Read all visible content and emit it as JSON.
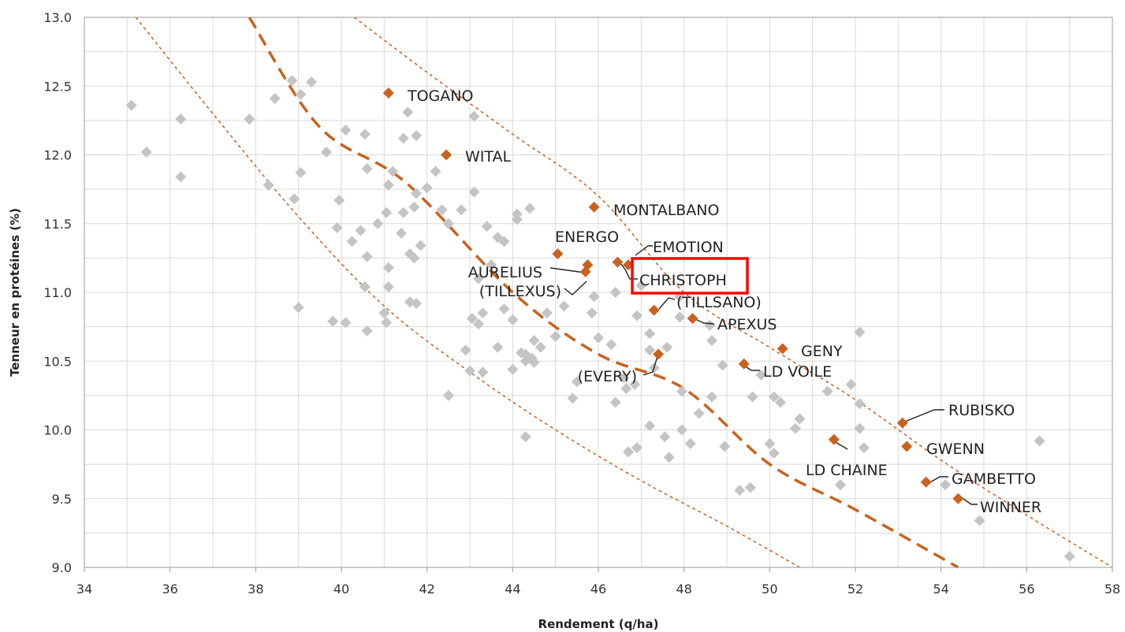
{
  "chart_data": {
    "type": "scatter",
    "xlabel": "Rendement (q/ha)",
    "ylabel": "Tenneur en protéines (%)",
    "xlim": [
      34,
      58
    ],
    "ylim": [
      9.0,
      13.0
    ],
    "x_ticks": [
      "34",
      "36",
      "38",
      "40",
      "42",
      "44",
      "46",
      "48",
      "50",
      "52",
      "54",
      "56",
      "58"
    ],
    "y_ticks": [
      "9.0",
      "9.5",
      "10.0",
      "10.5",
      "11.0",
      "11.5",
      "12.0",
      "12.5",
      "13.0"
    ],
    "grid": true,
    "colors": {
      "highlight": "#c8621e",
      "other": "#c4c4c4",
      "trend": "#c8621e",
      "box": "#ff0000"
    },
    "highlighted_varieties": [
      {
        "name": "TOGANO",
        "x": 41.1,
        "y": 12.45
      },
      {
        "name": "WITAL",
        "x": 42.45,
        "y": 12.0
      },
      {
        "name": "MONTALBANO",
        "x": 45.9,
        "y": 11.62
      },
      {
        "name": "ENERGO",
        "x": 45.05,
        "y": 11.28
      },
      {
        "name": "EMOTION",
        "x": 46.45,
        "y": 11.22
      },
      {
        "name": "AURELIUS",
        "x": 45.75,
        "y": 11.2
      },
      {
        "name": "(TILLEXUS)",
        "x": 45.7,
        "y": 11.15
      },
      {
        "name": "CHRISTOPH",
        "x": 46.7,
        "y": 11.2
      },
      {
        "name": "(TILLSANO)",
        "x": 47.3,
        "y": 10.87
      },
      {
        "name": "APEXUS",
        "x": 48.2,
        "y": 10.81
      },
      {
        "name": "GENY",
        "x": 50.3,
        "y": 10.59
      },
      {
        "name": "LD VOILE",
        "x": 49.4,
        "y": 10.48
      },
      {
        "name": "(EVERY)",
        "x": 47.4,
        "y": 10.55
      },
      {
        "name": "RUBISKO",
        "x": 53.1,
        "y": 10.05
      },
      {
        "name": "GWENN",
        "x": 53.2,
        "y": 9.88
      },
      {
        "name": "LD CHAINE",
        "x": 51.5,
        "y": 9.93
      },
      {
        "name": "GAMBETTO",
        "x": 53.65,
        "y": 9.62
      },
      {
        "name": "WINNER",
        "x": 54.4,
        "y": 9.5
      }
    ],
    "other_varieties": [
      [
        35.1,
        12.36
      ],
      [
        35.45,
        12.02
      ],
      [
        36.25,
        12.26
      ],
      [
        36.25,
        11.84
      ],
      [
        37.85,
        12.26
      ],
      [
        38.85,
        12.54
      ],
      [
        39.3,
        12.53
      ],
      [
        38.45,
        12.41
      ],
      [
        39.05,
        12.44
      ],
      [
        38.3,
        11.78
      ],
      [
        38.9,
        11.68
      ],
      [
        39.05,
        11.87
      ],
      [
        39.65,
        12.02
      ],
      [
        40.1,
        12.18
      ],
      [
        40.55,
        12.15
      ],
      [
        40.6,
        11.9
      ],
      [
        41.45,
        12.12
      ],
      [
        41.55,
        12.31
      ],
      [
        41.75,
        12.14
      ],
      [
        43.1,
        12.28
      ],
      [
        41.2,
        11.88
      ],
      [
        41.1,
        11.78
      ],
      [
        41.05,
        11.58
      ],
      [
        40.85,
        11.5
      ],
      [
        40.45,
        11.45
      ],
      [
        40.25,
        11.37
      ],
      [
        39.9,
        11.47
      ],
      [
        39.95,
        11.67
      ],
      [
        40.6,
        11.26
      ],
      [
        41.1,
        11.18
      ],
      [
        41.4,
        11.43
      ],
      [
        41.45,
        11.58
      ],
      [
        41.7,
        11.62
      ],
      [
        41.75,
        11.72
      ],
      [
        42.0,
        11.76
      ],
      [
        42.2,
        11.88
      ],
      [
        42.35,
        11.6
      ],
      [
        42.5,
        11.5
      ],
      [
        42.8,
        11.6
      ],
      [
        43.1,
        11.73
      ],
      [
        43.4,
        11.48
      ],
      [
        43.65,
        11.4
      ],
      [
        43.8,
        11.37
      ],
      [
        44.1,
        11.57
      ],
      [
        44.1,
        11.53
      ],
      [
        44.4,
        11.61
      ],
      [
        41.6,
        11.28
      ],
      [
        41.7,
        11.25
      ],
      [
        41.85,
        11.34
      ],
      [
        43.2,
        11.1
      ],
      [
        43.5,
        11.2
      ],
      [
        40.55,
        11.04
      ],
      [
        41.1,
        11.04
      ],
      [
        41.6,
        10.93
      ],
      [
        41.75,
        10.92
      ],
      [
        41.0,
        10.85
      ],
      [
        41.05,
        10.78
      ],
      [
        40.6,
        10.72
      ],
      [
        40.1,
        10.78
      ],
      [
        39.8,
        10.79
      ],
      [
        39.0,
        10.89
      ],
      [
        43.05,
        10.81
      ],
      [
        43.3,
        10.85
      ],
      [
        43.2,
        10.77
      ],
      [
        43.8,
        10.88
      ],
      [
        44.0,
        10.8
      ],
      [
        44.5,
        10.65
      ],
      [
        44.8,
        10.85
      ],
      [
        45.2,
        10.9
      ],
      [
        45.9,
        10.97
      ],
      [
        45.85,
        10.85
      ],
      [
        46.0,
        10.67
      ],
      [
        46.3,
        10.62
      ],
      [
        43.65,
        10.6
      ],
      [
        44.2,
        10.56
      ],
      [
        44.3,
        10.55
      ],
      [
        44.3,
        10.5
      ],
      [
        44.45,
        10.52
      ],
      [
        44.5,
        10.49
      ],
      [
        44.65,
        10.6
      ],
      [
        45.0,
        10.68
      ],
      [
        42.9,
        10.58
      ],
      [
        43.0,
        10.43
      ],
      [
        43.3,
        10.42
      ],
      [
        44.0,
        10.44
      ],
      [
        42.5,
        10.25
      ],
      [
        45.4,
        10.23
      ],
      [
        45.5,
        10.35
      ],
      [
        46.4,
        10.2
      ],
      [
        46.6,
        10.38
      ],
      [
        46.65,
        10.3
      ],
      [
        46.85,
        10.33
      ],
      [
        47.2,
        10.58
      ],
      [
        47.3,
        10.45
      ],
      [
        46.9,
        10.83
      ],
      [
        47.2,
        10.7
      ],
      [
        47.6,
        10.6
      ],
      [
        47.9,
        10.82
      ],
      [
        48.6,
        10.76
      ],
      [
        48.65,
        10.65
      ],
      [
        48.9,
        10.47
      ],
      [
        47.0,
        11.05
      ],
      [
        46.4,
        11.0
      ],
      [
        47.9,
        10.97
      ],
      [
        46.7,
        9.84
      ],
      [
        46.9,
        9.87
      ],
      [
        47.2,
        10.03
      ],
      [
        47.55,
        9.95
      ],
      [
        47.65,
        9.8
      ],
      [
        47.95,
        10.0
      ],
      [
        48.15,
        9.9
      ],
      [
        48.35,
        10.12
      ],
      [
        48.65,
        10.24
      ],
      [
        48.95,
        9.88
      ],
      [
        47.95,
        10.28
      ],
      [
        44.3,
        9.95
      ],
      [
        49.3,
        9.56
      ],
      [
        49.55,
        9.58
      ],
      [
        50.1,
        9.83
      ],
      [
        50.0,
        9.9
      ],
      [
        50.6,
        10.01
      ],
      [
        50.7,
        10.08
      ],
      [
        50.1,
        10.24
      ],
      [
        50.25,
        10.2
      ],
      [
        49.6,
        10.24
      ],
      [
        49.8,
        10.4
      ],
      [
        51.35,
        10.28
      ],
      [
        51.9,
        10.33
      ],
      [
        52.1,
        10.19
      ],
      [
        52.1,
        10.01
      ],
      [
        52.2,
        9.87
      ],
      [
        51.65,
        9.6
      ],
      [
        52.1,
        10.71
      ],
      [
        54.1,
        9.6
      ],
      [
        54.9,
        9.34
      ],
      [
        56.3,
        9.92
      ],
      [
        57.0,
        9.08
      ]
    ],
    "trend_curves": [
      {
        "style": "dashed-thick",
        "points": [
          [
            37.85,
            13.0
          ],
          [
            39.5,
            12.2
          ],
          [
            41.5,
            11.8
          ],
          [
            44,
            11.0
          ],
          [
            46,
            10.55
          ],
          [
            48,
            10.3
          ],
          [
            50,
            9.75
          ],
          [
            52,
            9.42
          ],
          [
            54.4,
            9.0
          ]
        ]
      },
      {
        "style": "dotted-thin-lower",
        "points": [
          [
            35.2,
            13.0
          ],
          [
            37,
            12.3
          ],
          [
            39,
            11.55
          ],
          [
            41,
            10.9
          ],
          [
            43,
            10.42
          ],
          [
            45,
            10.0
          ],
          [
            47,
            9.63
          ],
          [
            49,
            9.3
          ],
          [
            50.7,
            9.0
          ]
        ]
      },
      {
        "style": "dotted-thin-upper",
        "points": [
          [
            40.3,
            13.0
          ],
          [
            42,
            12.6
          ],
          [
            44,
            12.15
          ],
          [
            46,
            11.7
          ],
          [
            48,
            11.0
          ],
          [
            50,
            10.6
          ],
          [
            52,
            10.22
          ],
          [
            54,
            9.78
          ],
          [
            56,
            9.38
          ],
          [
            58,
            9.0
          ]
        ]
      }
    ]
  }
}
